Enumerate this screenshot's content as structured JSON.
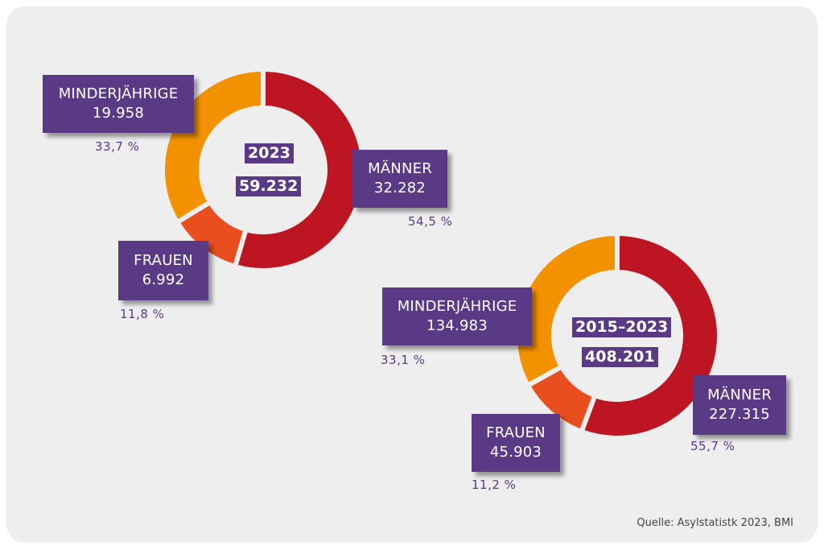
{
  "colors": {
    "maenner": "#bd1622",
    "frauen": "#e84e1e",
    "minderjaehrige": "#f39200",
    "label_box": "#5b3a85",
    "background": "#eeeeee"
  },
  "chart_data": [
    {
      "type": "pie",
      "donut": true,
      "center": {
        "year": "2023",
        "total": "59.232"
      },
      "slices": [
        {
          "name": "MÄNNER",
          "value": 32282,
          "value_label": "32.282",
          "percent": "54,5 %",
          "color": "#bd1622"
        },
        {
          "name": "FRAUEN",
          "value": 6992,
          "value_label": "6.992",
          "percent": "11,8 %",
          "color": "#e84e1e"
        },
        {
          "name": "MINDERJÄHRIGE",
          "value": 19958,
          "value_label": "19.958",
          "percent": "33,7 %",
          "color": "#f39200"
        }
      ]
    },
    {
      "type": "pie",
      "donut": true,
      "center": {
        "year": "2015–2023",
        "total": "408.201"
      },
      "slices": [
        {
          "name": "MÄNNER",
          "value": 227315,
          "value_label": "227.315",
          "percent": "55,7 %",
          "color": "#bd1622"
        },
        {
          "name": "FRAUEN",
          "value": 45903,
          "value_label": "45.903",
          "percent": "11,2 %",
          "color": "#e84e1e"
        },
        {
          "name": "MINDERJÄHRIGE",
          "value": 134983,
          "value_label": "134.983",
          "percent": "33,1 %",
          "color": "#f39200"
        }
      ]
    }
  ],
  "source": "Quelle: Asylstatistk 2023, BMI"
}
